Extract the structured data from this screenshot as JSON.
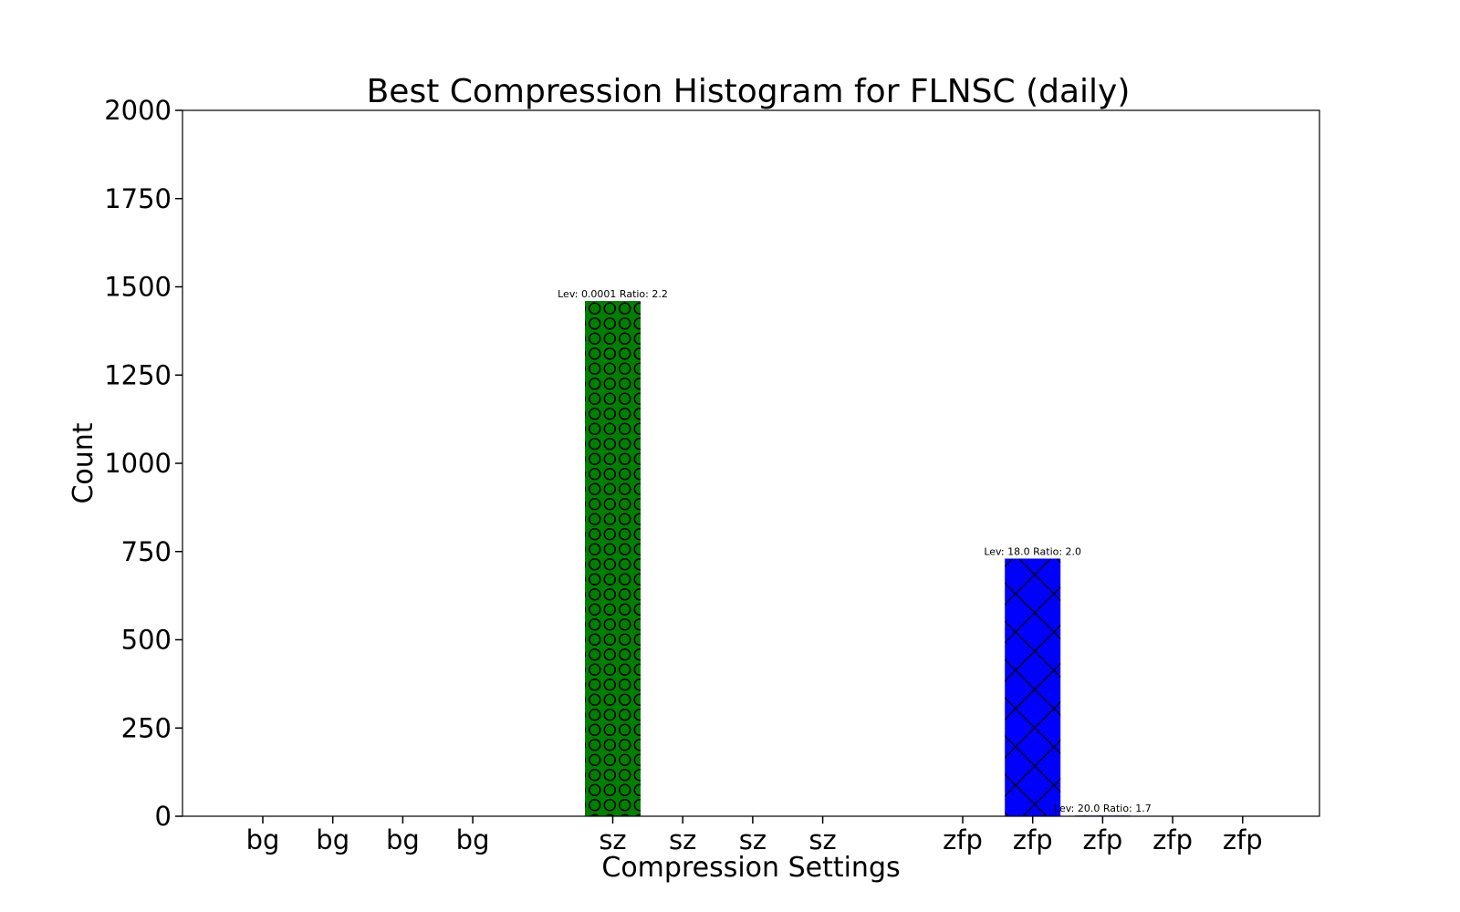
{
  "chart_data": {
    "type": "bar",
    "title": "Best Compression Histogram for FLNSC (daily)",
    "xlabel": "Compression Settings",
    "ylabel": "Count",
    "ylim": [
      0,
      2000
    ],
    "yticks": [
      0,
      250,
      500,
      750,
      1000,
      1250,
      1500,
      1750,
      2000
    ],
    "grid": false,
    "groups": [
      {
        "name": "bg",
        "color": "#d3d3d3",
        "hatch": "none",
        "bars": [
          {
            "label": "bg",
            "value": 0,
            "annotation": ""
          },
          {
            "label": "bg",
            "value": 0,
            "annotation": ""
          },
          {
            "label": "bg",
            "value": 0,
            "annotation": ""
          },
          {
            "label": "bg",
            "value": 0,
            "annotation": ""
          }
        ]
      },
      {
        "name": "sz",
        "color": "#008000",
        "hatch": "circles",
        "bars": [
          {
            "label": "sz",
            "value": 1460,
            "annotation": "Lev: 0.0001 Ratio: 2.2"
          },
          {
            "label": "sz",
            "value": 0,
            "annotation": ""
          },
          {
            "label": "sz",
            "value": 0,
            "annotation": ""
          },
          {
            "label": "sz",
            "value": 0,
            "annotation": ""
          }
        ]
      },
      {
        "name": "zfp",
        "color": "#0000ff",
        "hatch": "crosshatch",
        "bars": [
          {
            "label": "zfp",
            "value": 0,
            "annotation": ""
          },
          {
            "label": "zfp",
            "value": 730,
            "annotation": "Lev: 18.0 Ratio: 2.0"
          },
          {
            "label": "zfp",
            "value": 2,
            "annotation": "Lev: 20.0 Ratio: 1.7"
          },
          {
            "label": "zfp",
            "value": 0,
            "annotation": ""
          },
          {
            "label": "zfp",
            "value": 0,
            "annotation": ""
          }
        ]
      }
    ]
  }
}
